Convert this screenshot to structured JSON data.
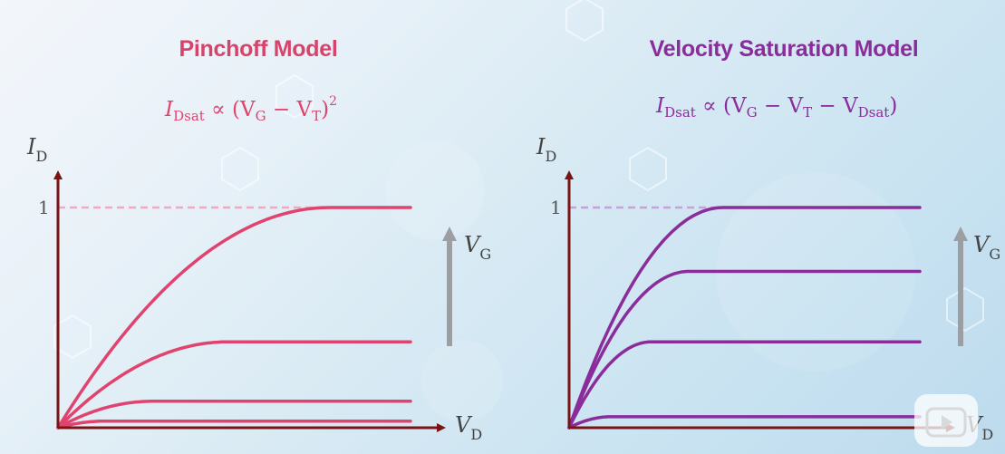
{
  "left": {
    "title": "Pinchoff Model",
    "formula": {
      "lhs": "I",
      "lhs_sub": "Dsat",
      "op": "∝",
      "body": "(V",
      "body_sub1": "G",
      "mid": " − V",
      "body_sub2": "T",
      "close": ")",
      "exp": "2"
    },
    "y_axis_label": "I",
    "y_axis_sub": "D",
    "x_axis_label": "V",
    "x_axis_sub": "D",
    "tick_label": "1",
    "arrow_label": "V",
    "arrow_sub": "G",
    "color": "#e0436e"
  },
  "right": {
    "title": "Velocity Saturation Model",
    "formula": {
      "lhs": "I",
      "lhs_sub": "Dsat",
      "op": "∝",
      "body": "(V",
      "body_sub1": "G",
      "mid": " − V",
      "body_sub2": "T",
      "mid2": " − V",
      "body_sub3": "Dsat",
      "close": ")"
    },
    "y_axis_label": "I",
    "y_axis_sub": "D",
    "x_axis_label": "V",
    "x_axis_sub": "D",
    "tick_label": "1",
    "arrow_label": "V",
    "arrow_sub": "G",
    "color": "#8a2c9a"
  },
  "chart_data": [
    {
      "type": "line",
      "title": "Pinchoff Model",
      "xlabel": "V_D",
      "ylabel": "I_D",
      "ylim": [
        0,
        1
      ],
      "saturation_levels": [
        1.0,
        0.39,
        0.12,
        0.03
      ]
    },
    {
      "type": "line",
      "title": "Velocity Saturation Model",
      "xlabel": "V_D",
      "ylabel": "I_D",
      "ylim": [
        0,
        1
      ],
      "saturation_levels": [
        1.0,
        0.71,
        0.39,
        0.05
      ]
    }
  ],
  "colors": {
    "axis": "#7a1414",
    "arrow": "#9c9ea2",
    "dashed_left": "#f0a9be",
    "dashed_right": "#c9a0d8"
  }
}
